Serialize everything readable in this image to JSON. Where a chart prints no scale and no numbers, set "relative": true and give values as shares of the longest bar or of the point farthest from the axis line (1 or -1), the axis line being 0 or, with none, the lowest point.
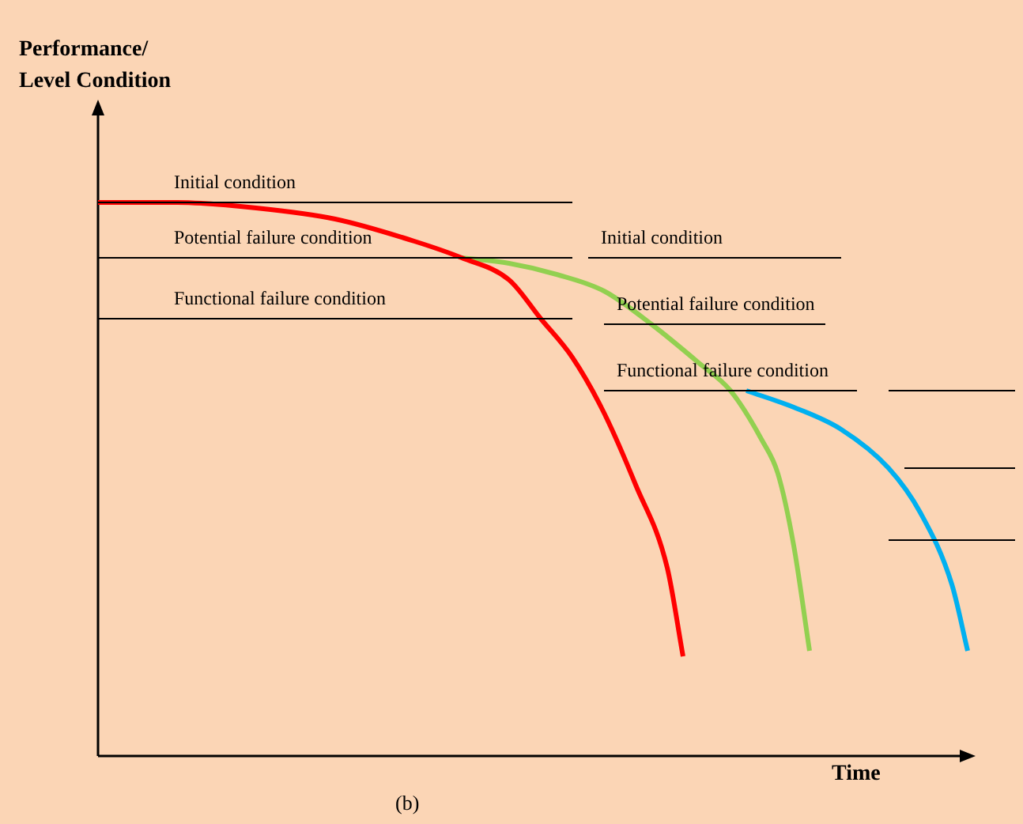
{
  "chart_data": {
    "type": "line",
    "relative": true,
    "tick_labels": false,
    "marker": "none",
    "line_style": "solid",
    "ylabel": "Performance/ Level Condition",
    "xlabel": "Time",
    "annotations": [
      "(b)"
    ],
    "categories": [
      null,
      null,
      null,
      null,
      null,
      null,
      null,
      null,
      null,
      null,
      null,
      null,
      null,
      null,
      null,
      null,
      null,
      null,
      null,
      null,
      null,
      null,
      null,
      null,
      null,
      null,
      null,
      null,
      null,
      null,
      null,
      null,
      null,
      null,
      null,
      null,
      null,
      null,
      null,
      null,
      null,
      null,
      null,
      null,
      null,
      null,
      null,
      null,
      null,
      null,
      null,
      null,
      null,
      null,
      null,
      null,
      null,
      null,
      null
    ],
    "series": [
      {
        "name": "Initial condition",
        "color": "#000000",
        "values": [
          1.0,
          null,
          null,
          null,
          null,
          null,
          null,
          null,
          null,
          null,
          null,
          null,
          null,
          null,
          null,
          null,
          null,
          null,
          null,
          null,
          null,
          null,
          null,
          null,
          null,
          null,
          null,
          null,
          null,
          null,
          1.0,
          null,
          null,
          null,
          null,
          null,
          null,
          null,
          null,
          null,
          null,
          null,
          null,
          null,
          null,
          null,
          null,
          null,
          null,
          null,
          null,
          null,
          null,
          null,
          null,
          null,
          null,
          null,
          null
        ]
      },
      {
        "name": "Potential failure condition",
        "color": "#000000",
        "values": [
          0.9,
          null,
          null,
          null,
          null,
          null,
          null,
          null,
          null,
          null,
          null,
          null,
          null,
          null,
          null,
          null,
          null,
          null,
          null,
          null,
          null,
          null,
          null,
          null,
          null,
          null,
          null,
          null,
          null,
          null,
          0.9,
          null,
          null,
          null,
          null,
          null,
          null,
          null,
          null,
          null,
          null,
          null,
          null,
          null,
          null,
          null,
          null,
          null,
          null,
          null,
          null,
          null,
          null,
          null,
          null,
          null,
          null,
          null,
          null
        ]
      },
      {
        "name": "Functional failure condition",
        "color": "#000000",
        "values": [
          0.79,
          null,
          null,
          null,
          null,
          null,
          null,
          null,
          null,
          null,
          null,
          null,
          null,
          null,
          null,
          null,
          null,
          null,
          null,
          null,
          null,
          null,
          null,
          null,
          null,
          null,
          null,
          null,
          null,
          null,
          0.79,
          null,
          null,
          null,
          null,
          null,
          null,
          null,
          null,
          null,
          null,
          null,
          null,
          null,
          null,
          null,
          null,
          null,
          null,
          null,
          null,
          null,
          null,
          null,
          null,
          null,
          null,
          null,
          null
        ]
      },
      {
        "name": "Initial condition",
        "color": "#000000",
        "values": [
          null,
          null,
          null,
          null,
          null,
          null,
          null,
          null,
          null,
          null,
          null,
          null,
          null,
          null,
          null,
          null,
          null,
          null,
          null,
          null,
          null,
          null,
          null,
          null,
          null,
          null,
          null,
          null,
          null,
          null,
          null,
          0.9,
          null,
          null,
          null,
          null,
          null,
          null,
          null,
          null,
          null,
          null,
          null,
          null,
          null,
          null,
          null,
          0.9,
          null,
          null,
          null,
          null,
          null,
          null,
          null,
          null,
          null,
          null,
          null
        ]
      },
      {
        "name": "Potential failure condition",
        "color": "#000000",
        "values": [
          null,
          null,
          null,
          null,
          null,
          null,
          null,
          null,
          null,
          null,
          null,
          null,
          null,
          null,
          null,
          null,
          null,
          null,
          null,
          null,
          null,
          null,
          null,
          null,
          null,
          null,
          null,
          null,
          null,
          null,
          null,
          null,
          0.78,
          null,
          null,
          null,
          null,
          null,
          null,
          null,
          null,
          null,
          null,
          null,
          null,
          null,
          0.78,
          null,
          null,
          null,
          null,
          null,
          null,
          null,
          null,
          null,
          null,
          null,
          null
        ]
      },
      {
        "name": "Functional failure condition",
        "color": "#000000",
        "values": [
          null,
          null,
          null,
          null,
          null,
          null,
          null,
          null,
          null,
          null,
          null,
          null,
          null,
          null,
          null,
          null,
          null,
          null,
          null,
          null,
          null,
          null,
          null,
          null,
          null,
          null,
          null,
          null,
          null,
          null,
          null,
          null,
          0.66,
          null,
          null,
          null,
          null,
          null,
          null,
          null,
          null,
          null,
          null,
          null,
          null,
          null,
          null,
          null,
          0.66,
          null,
          null,
          null,
          null,
          null,
          null,
          null,
          null,
          null,
          null
        ]
      },
      {
        "color": "#000000",
        "values": [
          null,
          null,
          null,
          null,
          null,
          null,
          null,
          null,
          null,
          null,
          null,
          null,
          null,
          null,
          null,
          null,
          null,
          null,
          null,
          null,
          null,
          null,
          null,
          null,
          null,
          null,
          null,
          null,
          null,
          null,
          null,
          null,
          null,
          null,
          null,
          null,
          null,
          null,
          null,
          null,
          null,
          null,
          null,
          null,
          null,
          null,
          null,
          null,
          null,
          null,
          0.66,
          null,
          null,
          null,
          null,
          null,
          null,
          null,
          0.66
        ]
      },
      {
        "color": "#000000",
        "values": [
          null,
          null,
          null,
          null,
          null,
          null,
          null,
          null,
          null,
          null,
          null,
          null,
          null,
          null,
          null,
          null,
          null,
          null,
          null,
          null,
          null,
          null,
          null,
          null,
          null,
          null,
          null,
          null,
          null,
          null,
          null,
          null,
          null,
          null,
          null,
          null,
          null,
          null,
          null,
          null,
          null,
          null,
          null,
          null,
          null,
          null,
          null,
          null,
          null,
          null,
          null,
          0.52,
          null,
          null,
          null,
          null,
          null,
          null,
          0.52
        ]
      },
      {
        "color": "#000000",
        "values": [
          null,
          null,
          null,
          null,
          null,
          null,
          null,
          null,
          null,
          null,
          null,
          null,
          null,
          null,
          null,
          null,
          null,
          null,
          null,
          null,
          null,
          null,
          null,
          null,
          null,
          null,
          null,
          null,
          null,
          null,
          null,
          null,
          null,
          null,
          null,
          null,
          null,
          null,
          null,
          null,
          null,
          null,
          null,
          null,
          null,
          null,
          null,
          null,
          null,
          null,
          0.39,
          null,
          null,
          null,
          null,
          null,
          null,
          null,
          0.39
        ]
      },
      {
        "color": "#ff0000",
        "values": [
          1.0,
          null,
          null,
          null,
          null,
          1.0,
          null,
          null,
          null,
          null,
          0.99,
          null,
          null,
          null,
          null,
          0.97,
          null,
          null,
          null,
          null,
          0.93,
          null,
          null,
          0.9,
          null,
          null,
          0.86,
          null,
          0.79,
          null,
          0.72,
          null,
          0.62,
          null,
          0.49,
          null,
          0.34,
          0.18,
          null,
          null,
          null,
          null,
          null,
          null,
          null,
          null,
          null,
          null,
          null,
          null,
          null,
          null,
          null,
          null,
          null,
          null,
          null,
          null,
          null
        ]
      },
      {
        "color": "#92d050",
        "values": [
          null,
          null,
          null,
          null,
          null,
          null,
          null,
          null,
          null,
          null,
          null,
          null,
          null,
          null,
          null,
          null,
          null,
          null,
          null,
          null,
          null,
          null,
          null,
          0.9,
          null,
          null,
          0.89,
          null,
          null,
          0.87,
          null,
          null,
          0.84,
          null,
          null,
          0.78,
          null,
          null,
          0.71,
          null,
          0.66,
          null,
          0.57,
          0.51,
          0.38,
          0.19,
          null,
          null,
          null,
          null,
          null,
          null,
          null,
          null,
          null,
          null,
          null,
          null,
          null
        ]
      },
      {
        "color": "#00b0f0",
        "values": [
          null,
          null,
          null,
          null,
          null,
          null,
          null,
          null,
          null,
          null,
          null,
          null,
          null,
          null,
          null,
          null,
          null,
          null,
          null,
          null,
          null,
          null,
          null,
          null,
          null,
          null,
          null,
          null,
          null,
          null,
          null,
          null,
          null,
          null,
          null,
          null,
          null,
          null,
          null,
          null,
          null,
          0.66,
          null,
          null,
          0.63,
          null,
          null,
          0.59,
          null,
          null,
          0.52,
          null,
          0.44,
          null,
          0.31,
          0.19,
          null,
          null,
          null
        ]
      }
    ]
  }
}
